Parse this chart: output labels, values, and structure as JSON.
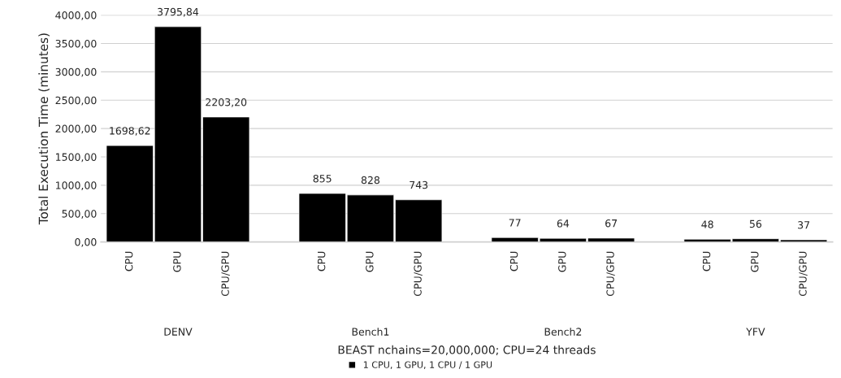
{
  "chart_data": {
    "type": "bar",
    "categories": [
      "CPU",
      "GPU",
      "CPU/GPU",
      null,
      "CPU",
      "GPU",
      "CPU/GPU",
      null,
      "CPU",
      "GPU",
      "CPU/GPU",
      null,
      "CPU",
      "GPU",
      "CPU/GPU"
    ],
    "series": [
      {
        "name": "1 CPU, 1 GPU, 1 CPU / 1 GPU",
        "color": "#000000",
        "values": [
          1698.62,
          3795.84,
          2203.2,
          null,
          855,
          828,
          743,
          null,
          77,
          64,
          67,
          null,
          48,
          56,
          37
        ],
        "value_labels": [
          "1698,62",
          "3795,84",
          "2203,20",
          null,
          "855",
          "828",
          "743",
          null,
          "77",
          "64",
          "67",
          null,
          "48",
          "56",
          "37"
        ]
      }
    ],
    "ylabel": "Total Execution Time (minutes)",
    "xlabel": "BEAST nchains=20,000,000; CPU=24 threads",
    "annotations": [
      "DENV",
      "Bench1",
      "Bench2",
      "YFV"
    ],
    "ylim": [
      0,
      4000
    ],
    "yticks": [
      {
        "value": 0,
        "label": "0,00"
      },
      {
        "value": 500,
        "label": "500,00"
      },
      {
        "value": 1000,
        "label": "1000,00"
      },
      {
        "value": 1500,
        "label": "1500,00"
      },
      {
        "value": 2000,
        "label": "2000,00"
      },
      {
        "value": 2500,
        "label": "2500,00"
      },
      {
        "value": 3000,
        "label": "3000,00"
      },
      {
        "value": 3500,
        "label": "3500,00"
      },
      {
        "value": 4000,
        "label": "4000,00"
      }
    ],
    "grid": "y",
    "legend": "bottom"
  }
}
